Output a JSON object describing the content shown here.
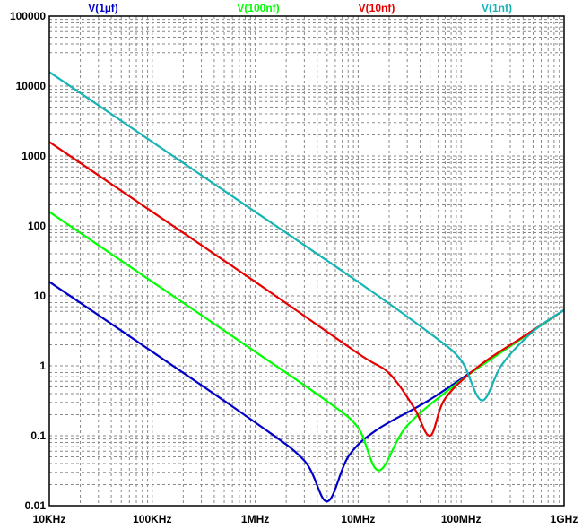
{
  "chart_data": {
    "type": "line",
    "x_scale": "log",
    "y_scale": "log",
    "xlim": [
      10000,
      1000000000
    ],
    "ylim": [
      0.01,
      100000
    ],
    "grid": true,
    "x_ticks": [
      {
        "value": 10000,
        "label": "10KHz"
      },
      {
        "value": 100000,
        "label": "100KHz"
      },
      {
        "value": 1000000,
        "label": "1MHz"
      },
      {
        "value": 10000000,
        "label": "10MHz"
      },
      {
        "value": 100000000,
        "label": "100MHz"
      },
      {
        "value": 1000000000,
        "label": "1GHz"
      }
    ],
    "y_ticks": [
      {
        "value": 100000,
        "label": "100000"
      },
      {
        "value": 10000,
        "label": "10000"
      },
      {
        "value": 1000,
        "label": "1000"
      },
      {
        "value": 100,
        "label": "100"
      },
      {
        "value": 10,
        "label": "10"
      },
      {
        "value": 1,
        "label": "1"
      },
      {
        "value": 0.1,
        "label": "0.1"
      },
      {
        "value": 0.01,
        "label": "0.01"
      }
    ],
    "series": [
      {
        "name": "V(1µf)",
        "color": "#0000c8",
        "x": [
          10000,
          100000,
          1000000,
          3000000,
          5000000,
          8000000,
          15000000,
          50000000,
          200000000,
          1000000000
        ],
        "y": [
          15.9,
          1.59,
          0.155,
          0.044,
          0.0115,
          0.05,
          0.12,
          0.33,
          1.3,
          6.3
        ]
      },
      {
        "name": "V(100nf)",
        "color": "#00ff00",
        "x": [
          10000,
          100000,
          1000000,
          5000000,
          10000000,
          15900000,
          30000000,
          100000000,
          300000000,
          1000000000
        ],
        "y": [
          159,
          15.9,
          1.59,
          0.31,
          0.13,
          0.032,
          0.14,
          0.62,
          1.9,
          6.3
        ]
      },
      {
        "name": "V(10nf)",
        "color": "#e60000",
        "x": [
          10000,
          100000,
          1000000,
          10000000,
          20000000,
          35000000,
          50000000,
          70000000,
          150000000,
          400000000,
          1000000000
        ],
        "y": [
          1590,
          159,
          15.9,
          1.5,
          0.78,
          0.25,
          0.1,
          0.34,
          1.0,
          2.6,
          6.3
        ]
      },
      {
        "name": "V(1nf)",
        "color": "#16b4b4",
        "x": [
          10000,
          100000,
          1000000,
          10000000,
          50000000,
          100000000,
          159000000,
          250000000,
          500000000,
          1000000000
        ],
        "y": [
          15900,
          1590,
          159,
          15.8,
          2.9,
          1.2,
          0.32,
          1.05,
          3.1,
          6.3
        ]
      }
    ]
  }
}
